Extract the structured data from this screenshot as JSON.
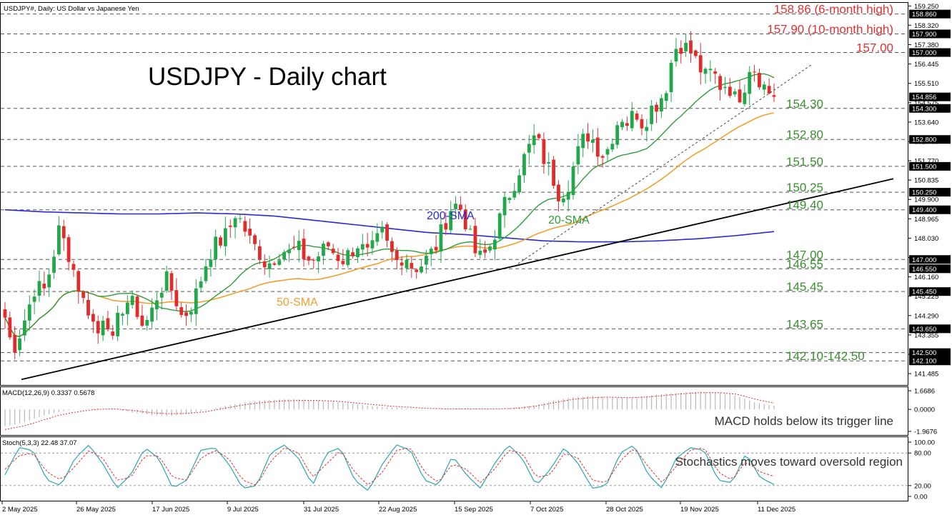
{
  "chart_data": {
    "type": "candlestick",
    "symbol_header": "USDJPY#, Daily:  US Dollar vs Japanese Yen",
    "title": "USDJPY - Daily chart",
    "colors": {
      "up": "#22a84a",
      "down": "#e22b2b",
      "sma20": "#2e9c3a",
      "sma50": "#f0a030",
      "sma200": "#2a2ad0",
      "trendline": "#000000",
      "level_green": "#3a8f2e",
      "level_red": "#e23030",
      "macd_hist": "#b8b8b8",
      "macd_signal": "#e03030",
      "stoch_main": "#2aa6b0",
      "stoch_signal": "#e03030"
    },
    "price_axis": {
      "ylim": [
        140.9,
        159.4
      ],
      "ticks": [
        "159.250",
        "158.320",
        "157.380",
        "156.445",
        "155.510",
        "154.575",
        "153.640",
        "152.700",
        "151.770",
        "150.835",
        "149.900",
        "148.965",
        "148.030",
        "147.095",
        "146.160",
        "145.225",
        "144.290",
        "143.355",
        "142.420",
        "141.485"
      ]
    },
    "price_highlights": [
      {
        "label": "158.860",
        "value": 158.86
      },
      {
        "label": "157.900",
        "value": 157.9
      },
      {
        "label": "157.000",
        "value": 157.0
      },
      {
        "label": "154.856",
        "value": 154.856
      },
      {
        "label": "154.300",
        "value": 154.3
      },
      {
        "label": "152.800",
        "value": 152.8
      },
      {
        "label": "151.500",
        "value": 151.5
      },
      {
        "label": "150.250",
        "value": 150.25
      },
      {
        "label": "149.400",
        "value": 149.4
      },
      {
        "label": "147.000",
        "value": 147.0
      },
      {
        "label": "146.550",
        "value": 146.55
      },
      {
        "label": "145.450",
        "value": 145.45
      },
      {
        "label": "143.650",
        "value": 143.65
      },
      {
        "label": "142.500",
        "value": 142.5
      },
      {
        "label": "142.100",
        "value": 142.1
      }
    ],
    "levels": [
      {
        "value": 158.86,
        "label": "158.86 (6-month high)",
        "color": "red"
      },
      {
        "value": 157.9,
        "label": "157.90 (10-month high)",
        "color": "red"
      },
      {
        "value": 157.0,
        "label": "157.00",
        "color": "red"
      },
      {
        "value": 154.3,
        "label": "154.30",
        "color": "green"
      },
      {
        "value": 152.8,
        "label": "152.80",
        "color": "green"
      },
      {
        "value": 151.5,
        "label": "151.50",
        "color": "green"
      },
      {
        "value": 150.25,
        "label": "150.25",
        "color": "green"
      },
      {
        "value": 149.4,
        "label": "149.40",
        "color": "green"
      },
      {
        "value": 147.0,
        "label": "147.00",
        "color": "green"
      },
      {
        "value": 146.55,
        "label": "146.55",
        "color": "green"
      },
      {
        "value": 145.45,
        "label": "145.45",
        "color": "green"
      },
      {
        "value": 143.65,
        "label": "143.65",
        "color": "green"
      },
      {
        "value": 142.1,
        "label": "142.10-142.50",
        "color": "green"
      },
      {
        "value": 142.5,
        "label": "",
        "color": "green"
      }
    ],
    "sma_labels": {
      "sma20": "20-SMA",
      "sma50": "50-SMA",
      "sma200": "200-SMA"
    },
    "x_dates": [
      "2 May 2025",
      "26 May 2025",
      "17 Jun 2025",
      "9 Jul 2025",
      "31 Jul 2025",
      "22 Aug 2025",
      "15 Sep 2025",
      "7 Oct 2025",
      "28 Oct 2025",
      "19 Nov 2025",
      "11 Dec 2025"
    ],
    "close_keypoints": [
      144.2,
      142.6,
      143.5,
      144.6,
      145.8,
      145.4,
      146.7,
      148.4,
      147.6,
      146.4,
      145.1,
      144.5,
      143.3,
      144.7,
      142.9,
      144.6,
      145.0,
      144.7,
      143.7,
      144.4,
      145.5,
      146.0,
      145.3,
      144.2,
      144.6,
      145.5,
      146.7,
      147.6,
      147.9,
      148.3,
      149.3,
      148.6,
      147.8,
      147.4,
      146.7,
      147.1,
      147.5,
      147.3,
      147.6,
      147.1,
      146.9,
      147.3,
      147.7,
      147.2,
      147.0,
      147.4,
      147.8,
      147.2,
      147.6,
      148.3,
      147.4,
      146.9,
      147.3,
      146.6,
      146.7,
      147.1,
      147.6,
      148.6,
      149.5,
      149.7,
      148.7,
      147.4,
      147.0,
      147.6,
      148.6,
      149.7,
      150.5,
      151.5,
      152.3,
      153.0,
      151.9,
      151.2,
      150.2,
      150.4,
      151.6,
      152.7,
      153.1,
      152.4,
      152.0,
      153.0,
      154.0,
      153.6,
      154.2,
      153.5,
      154.3,
      154.6,
      155.4,
      157.2,
      157.4,
      157.1,
      156.5,
      155.8,
      156.1,
      155.4,
      155.5,
      154.7,
      155.2,
      156.6,
      155.8,
      155.2,
      154.86
    ],
    "sma200_keypoints": [
      149.4,
      149.3,
      149.25,
      149.2,
      149.2,
      149.25,
      149.2,
      149.1,
      148.9,
      148.7,
      148.5,
      148.3,
      148.2,
      148.05,
      147.9,
      147.85,
      147.85,
      147.9,
      148.0,
      148.15,
      148.35
    ],
    "trendline": {
      "from": [
        0,
        141.2
      ],
      "to": [
        100,
        150.9
      ]
    },
    "minor_trendline": {
      "from": [
        58,
        146.8
      ],
      "to": [
        105,
        156.4
      ]
    },
    "macd": {
      "header": "MACD(12,26,9) 0.3337 0.5678",
      "ticks": [
        "1.6686",
        "0.0000",
        "-1.9676"
      ],
      "ylim": [
        -2.1,
        1.8
      ],
      "annotation": "MACD holds below its trigger line",
      "hist_keypoints": [
        -1.5,
        -1.2,
        -0.6,
        -0.2,
        0.0,
        0.1,
        0.0,
        -0.3,
        -0.5,
        -0.6,
        -0.4,
        -0.1,
        0.3,
        0.6,
        0.8,
        0.9,
        0.9,
        0.8,
        0.7,
        0.5,
        0.3,
        0.2,
        0.1,
        0.0,
        0.05,
        0.1,
        0.05,
        0.0,
        0.2,
        0.4,
        0.8,
        1.1,
        1.2,
        1.1,
        1.0,
        1.2,
        1.4,
        1.5,
        1.6,
        1.5,
        1.2,
        0.6,
        0.33
      ],
      "signal_keypoints": [
        -1.8,
        -1.5,
        -1.0,
        -0.5,
        -0.2,
        0.0,
        0.05,
        -0.1,
        -0.3,
        -0.4,
        -0.35,
        -0.2,
        0.1,
        0.4,
        0.6,
        0.75,
        0.8,
        0.8,
        0.75,
        0.6,
        0.45,
        0.3,
        0.2,
        0.1,
        0.05,
        0.05,
        0.05,
        0.05,
        0.1,
        0.3,
        0.6,
        0.9,
        1.05,
        1.1,
        1.05,
        1.1,
        1.25,
        1.4,
        1.5,
        1.5,
        1.35,
        0.9,
        0.57
      ]
    },
    "stoch": {
      "header": "Stoch(5,3,3) 22.48 37.07",
      "ticks": [
        "100.00",
        "80.00",
        "20.00",
        "0.00"
      ],
      "ylim": [
        0,
        100
      ],
      "annotation": "Stochastics moves toward oversold region",
      "main_keypoints": [
        40,
        90,
        85,
        30,
        20,
        70,
        95,
        60,
        15,
        40,
        90,
        70,
        15,
        30,
        85,
        90,
        60,
        15,
        20,
        80,
        95,
        70,
        20,
        80,
        90,
        30,
        10,
        60,
        95,
        85,
        30,
        20,
        75,
        40,
        15,
        60,
        95,
        70,
        20,
        50,
        90,
        60,
        15,
        20,
        80,
        95,
        40,
        15,
        70,
        90,
        85,
        30,
        25,
        80,
        35,
        22
      ],
      "signal_keypoints": [
        50,
        75,
        80,
        45,
        30,
        55,
        85,
        70,
        30,
        35,
        75,
        75,
        35,
        30,
        70,
        85,
        70,
        30,
        20,
        65,
        90,
        80,
        35,
        60,
        85,
        45,
        20,
        45,
        85,
        90,
        45,
        25,
        60,
        50,
        25,
        50,
        85,
        80,
        35,
        40,
        80,
        70,
        30,
        25,
        65,
        90,
        55,
        25,
        55,
        85,
        90,
        45,
        30,
        65,
        45,
        37.07
      ]
    }
  }
}
